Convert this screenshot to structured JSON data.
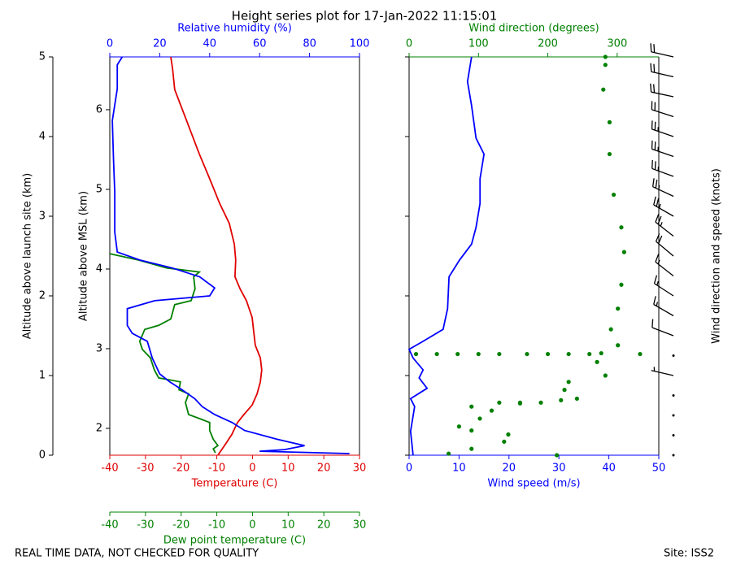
{
  "title": "Height series plot for 17-Jan-2022 11:15:01",
  "footer_left": "REAL TIME DATA, NOT CHECKED FOR QUALITY",
  "footer_right": "Site: ISS2",
  "chart_data": [
    {
      "type": "profile",
      "ylabel": "Altitude above launch site (km)",
      "ylim": [
        0,
        5
      ],
      "yticks": [
        0,
        1,
        2,
        3,
        4,
        5
      ],
      "y2label": "Altitude above MSL (km)",
      "y2lim": [
        1.663,
        6.663
      ],
      "y2ticks": [
        2,
        3,
        4,
        5,
        6
      ],
      "xlabel": "Temperature (C)",
      "xlim": [
        -40,
        30
      ],
      "xticks": [
        -40,
        -30,
        -20,
        -10,
        0,
        10,
        20,
        30
      ],
      "x2label": "Relative humidity (%)",
      "x2lim": [
        0,
        100
      ],
      "x2ticks": [
        0,
        20,
        40,
        60,
        80,
        100
      ],
      "x3label": "Dew point temperature (C)",
      "x3lim": [
        -40,
        30
      ],
      "x3ticks": [
        -40,
        -30,
        -20,
        -10,
        0,
        10,
        20,
        30
      ],
      "series": [
        {
          "color": "#e00000",
          "axis": "x",
          "style": "line",
          "altitude": [
            0,
            0.15,
            0.26,
            0.41,
            0.51,
            0.63,
            0.77,
            0.92,
            1.07,
            1.22,
            1.38,
            1.53,
            1.73,
            1.94,
            2.09,
            2.24,
            2.45,
            2.65,
            2.91,
            3.16,
            3.47,
            3.78,
            4.18,
            4.59,
            4.85,
            5.0
          ],
          "values": [
            -9.7,
            -7.4,
            -5.8,
            -4.2,
            -2.4,
            -0.1,
            1.3,
            2.2,
            2.6,
            2.2,
            0.8,
            0.4,
            -0.1,
            -1.7,
            -3.5,
            -4.9,
            -4.7,
            -5.1,
            -6.5,
            -9.2,
            -12.0,
            -14.9,
            -18.3,
            -21.8,
            -22.4,
            -22.9
          ]
        },
        {
          "color": "#008000",
          "axis": "x3",
          "style": "line",
          "altitude": [
            0.03,
            0.08,
            0.12,
            0.2,
            0.31,
            0.41,
            0.46,
            0.51,
            0.66,
            0.77,
            0.82,
            0.92,
            0.97,
            1.07,
            1.22,
            1.33,
            1.43,
            1.58,
            1.63,
            1.71,
            1.89,
            1.94,
            2.09,
            2.24,
            2.3,
            2.35,
            2.45,
            2.53
          ],
          "values": [
            -10.4,
            -11.0,
            -9.7,
            -11.0,
            -12.0,
            -12.0,
            -14.9,
            -17.9,
            -18.8,
            -17.9,
            -20.6,
            -20.2,
            -26.3,
            -27.5,
            -28.6,
            -30.9,
            -31.6,
            -30.2,
            -26.3,
            -22.9,
            -21.8,
            -17.2,
            -16.1,
            -16.5,
            -14.9,
            -24.0,
            -32.0,
            -40.0
          ]
        },
        {
          "color": "#0000ff",
          "axis": "x2",
          "style": "line",
          "altitude": [
            0.02,
            0.05,
            0.07,
            0.12,
            0.2,
            0.31,
            0.41,
            0.51,
            0.61,
            0.71,
            0.82,
            0.92,
            1.02,
            1.22,
            1.43,
            1.53,
            1.63,
            1.84,
            1.94,
            2.0,
            2.1,
            2.24,
            2.35,
            2.45,
            2.55,
            2.8,
            3.3,
            3.7,
            4.2,
            4.6,
            4.9,
            5.0
          ],
          "values": [
            96,
            60,
            70,
            78,
            67,
            54,
            49,
            42,
            37,
            34,
            29,
            24,
            20,
            17,
            15,
            9,
            7,
            7,
            18,
            40,
            42,
            36,
            25,
            12,
            3,
            2,
            2,
            1.5,
            1,
            3,
            3,
            5
          ]
        }
      ]
    },
    {
      "type": "profile",
      "ylim": [
        0,
        5
      ],
      "yticks": [
        0,
        1,
        2,
        3,
        4,
        5
      ],
      "xlabel": "Wind speed (m/s)",
      "xlim": [
        0,
        50
      ],
      "xticks": [
        0,
        10,
        20,
        30,
        40,
        50
      ],
      "x2label": "Wind direction (degrees)",
      "x2lim": [
        0,
        360
      ],
      "x2ticks": [
        0,
        100,
        200,
        300
      ],
      "series": [
        {
          "color": "#0000ff",
          "axis": "x",
          "style": "line",
          "altitude": [
            0,
            0.3,
            0.61,
            0.71,
            0.84,
            0.97,
            1.07,
            1.22,
            1.33,
            1.43,
            1.58,
            1.84,
            2.24,
            2.45,
            2.65,
            2.86,
            3.16,
            3.47,
            3.78,
            3.98,
            4.39,
            4.69,
            5.0
          ],
          "values": [
            0.8,
            0.3,
            1.1,
            0.3,
            3.6,
            2.0,
            2.8,
            0.8,
            0,
            2.8,
            6.8,
            7.7,
            8.0,
            10.1,
            12.5,
            13.4,
            14.2,
            14.2,
            15.0,
            13.4,
            12.5,
            11.7,
            12.5
          ]
        },
        {
          "color": "#008000",
          "axis": "x2",
          "style": "dots",
          "altitude": [
            0,
            0.02,
            0.08,
            0.17,
            0.26,
            0.31,
            0.36,
            0.46,
            0.56,
            0.61,
            0.65,
            0.69,
            0.71,
            0.82,
            0.92,
            1.0,
            1.17,
            1.28,
            1.38,
            1.58,
            1.84,
            2.14,
            2.55,
            2.86,
            3.27,
            3.78,
            4.18,
            4.59,
            4.9,
            5.0,
            1.27,
            1.27,
            1.27,
            1.27,
            1.27,
            1.27,
            1.27,
            1.27,
            1.27,
            1.27,
            0.66,
            0.66,
            0.66
          ],
          "values": [
            213,
            57,
            90,
            137,
            143,
            90,
            72,
            102,
            119,
            90,
            160,
            219,
            242,
            224,
            230,
            283,
            271,
            277,
            301,
            291,
            301,
            306,
            310,
            306,
            295,
            289,
            289,
            280,
            283,
            283,
            10,
            40,
            70,
            100,
            130,
            170,
            200,
            230,
            260,
            333,
            130,
            160,
            190
          ]
        }
      ],
      "barbs_label": "Wind direction and speed (knots)",
      "barbs": {
        "altitude": [
          0,
          0.25,
          0.5,
          0.75,
          1.0,
          1.25,
          1.5,
          1.75,
          2.0,
          2.25,
          2.5,
          2.75,
          3.0,
          3.25,
          3.5,
          3.75,
          4.0,
          4.25,
          4.5,
          4.75,
          5.0
        ],
        "speed": [
          1.5,
          0.6,
          2,
          1,
          5,
          1,
          10,
          15,
          15,
          16,
          20,
          25,
          27,
          28,
          28,
          29,
          26,
          24,
          23,
          23,
          24
        ],
        "direction": [
          60,
          140,
          100,
          230,
          283,
          277,
          291,
          300,
          303,
          308,
          310,
          308,
          300,
          295,
          290,
          289,
          289,
          288,
          282,
          283,
          283
        ]
      }
    }
  ]
}
